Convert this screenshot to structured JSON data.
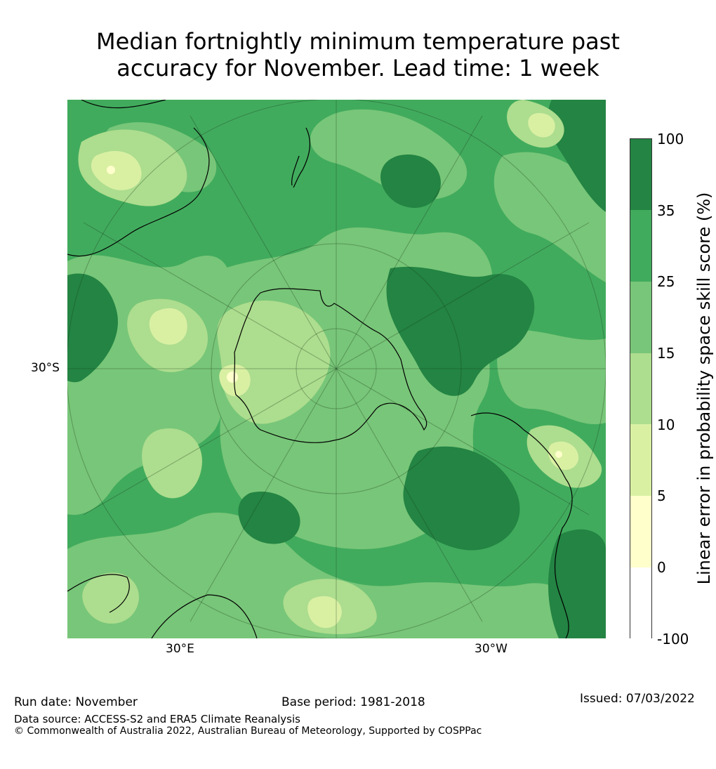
{
  "title_line1": "Median fortnightly minimum temperature past",
  "title_line2": "accuracy for November. Lead time: 1 week",
  "map": {
    "projection": "south-polar-stereographic",
    "latitude_label": "30°S",
    "longitude_labels": [
      "30°E",
      "30°W"
    ],
    "regions_visible": [
      "Antarctica",
      "Australia",
      "New Zealand",
      "South America",
      "Southern Africa"
    ]
  },
  "colorbar": {
    "label": "Linear error in probability space skill score (%)",
    "ticks": [
      "100",
      "35",
      "25",
      "15",
      "10",
      "5",
      "0",
      "-100"
    ],
    "bins": [
      {
        "from": "35",
        "to": "100",
        "color": "#238443"
      },
      {
        "from": "25",
        "to": "35",
        "color": "#41ab5d"
      },
      {
        "from": "15",
        "to": "25",
        "color": "#78c679"
      },
      {
        "from": "10",
        "to": "15",
        "color": "#addd8e"
      },
      {
        "from": "5",
        "to": "10",
        "color": "#d9f0a3"
      },
      {
        "from": "0",
        "to": "5",
        "color": "#ffffcc"
      },
      {
        "from": "-100",
        "to": "0",
        "color": "#ffffff"
      }
    ]
  },
  "footer": {
    "run_date": "Run date: November",
    "base_period": "Base period: 1981-2018",
    "issued": "Issued: 07/03/2022",
    "data_source": "Data source: ACCESS-S2 and ERA5 Climate Reanalysis",
    "copyright": "© Commonwealth of Australia 2022, Australian Bureau of Meteorology, Supported by COSPPac"
  }
}
